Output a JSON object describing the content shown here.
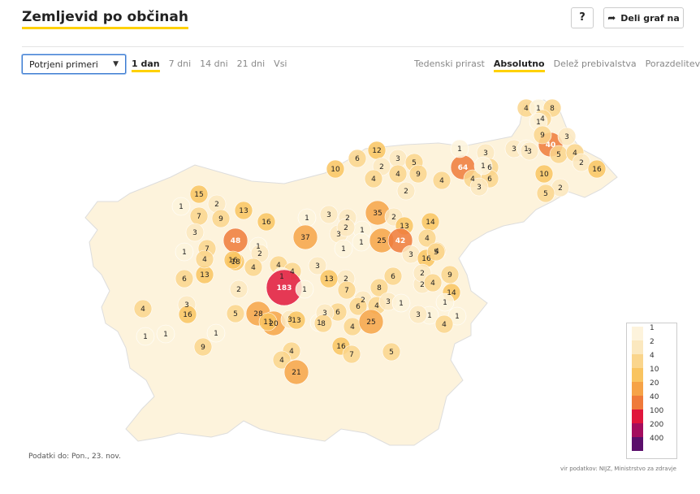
{
  "header": {
    "title": "Zemljevid po občinah",
    "help_label": "?",
    "share_label": "Deli graf na"
  },
  "controls": {
    "select_value": "Potrjeni primeri",
    "time_tabs": [
      {
        "label": "1 dan",
        "active": true
      },
      {
        "label": "7 dni",
        "active": false
      },
      {
        "label": "14 dni",
        "active": false
      },
      {
        "label": "21 dni",
        "active": false
      },
      {
        "label": "Vsi",
        "active": false
      }
    ],
    "mode_tabs": [
      {
        "label": "Tedenski prirast",
        "active": false
      },
      {
        "label": "Absolutno",
        "active": true
      },
      {
        "label": "Delež prebivalstva",
        "active": false
      },
      {
        "label": "Porazdelitev",
        "active": false
      }
    ]
  },
  "legend": {
    "entries": [
      {
        "label": "1",
        "color": "#fdf3dc"
      },
      {
        "label": "2",
        "color": "#fbe8bf"
      },
      {
        "label": "4",
        "color": "#fad58c"
      },
      {
        "label": "10",
        "color": "#f9c460"
      },
      {
        "label": "20",
        "color": "#f6a347"
      },
      {
        "label": "40",
        "color": "#ef7a3a"
      },
      {
        "label": "100",
        "color": "#e0163c"
      },
      {
        "label": "200",
        "color": "#a40d5e"
      },
      {
        "label": "400",
        "color": "#5b0f6b"
      }
    ]
  },
  "map": {
    "values": [
      "4",
      "1",
      "8",
      "4",
      "40",
      "3",
      "3",
      "1",
      "5",
      "4",
      "2",
      "16",
      "1",
      "9",
      "3",
      "64",
      "3",
      "6",
      "1",
      "4",
      "10",
      "10",
      "6",
      "12",
      "3",
      "5",
      "2",
      "4",
      "9",
      "6",
      "3",
      "1",
      "4",
      "2",
      "2",
      "5",
      "4",
      "15",
      "2",
      "9",
      "13",
      "7",
      "1",
      "16",
      "1",
      "37",
      "3",
      "2",
      "35",
      "2",
      "13",
      "14",
      "3",
      "1",
      "2",
      "1",
      "1",
      "4",
      "48",
      "1",
      "2",
      "25",
      "42",
      "3",
      "4",
      "16",
      "5",
      "7",
      "1",
      "3",
      "13",
      "4",
      "18",
      "4",
      "4",
      "2",
      "6",
      "2",
      "6",
      "16",
      "4",
      "2",
      "1",
      "183",
      "2",
      "3",
      "13",
      "1",
      "7",
      "8",
      "4",
      "9",
      "14",
      "4",
      "3",
      "16",
      "5",
      "28",
      "20",
      "3",
      "11",
      "13",
      "1",
      "6",
      "2",
      "1",
      "3",
      "6",
      "4",
      "1",
      "1",
      "8",
      "4",
      "25",
      "3",
      "1",
      "3",
      "4",
      "1",
      "1",
      "1",
      "9",
      "4",
      "16",
      "7",
      "4",
      "21",
      "5"
    ]
  },
  "footer": {
    "data_date": "Podatki do: Pon., 23. nov.",
    "source": "vir podatkov: NIJZ, Ministrstvo za zdravje"
  }
}
